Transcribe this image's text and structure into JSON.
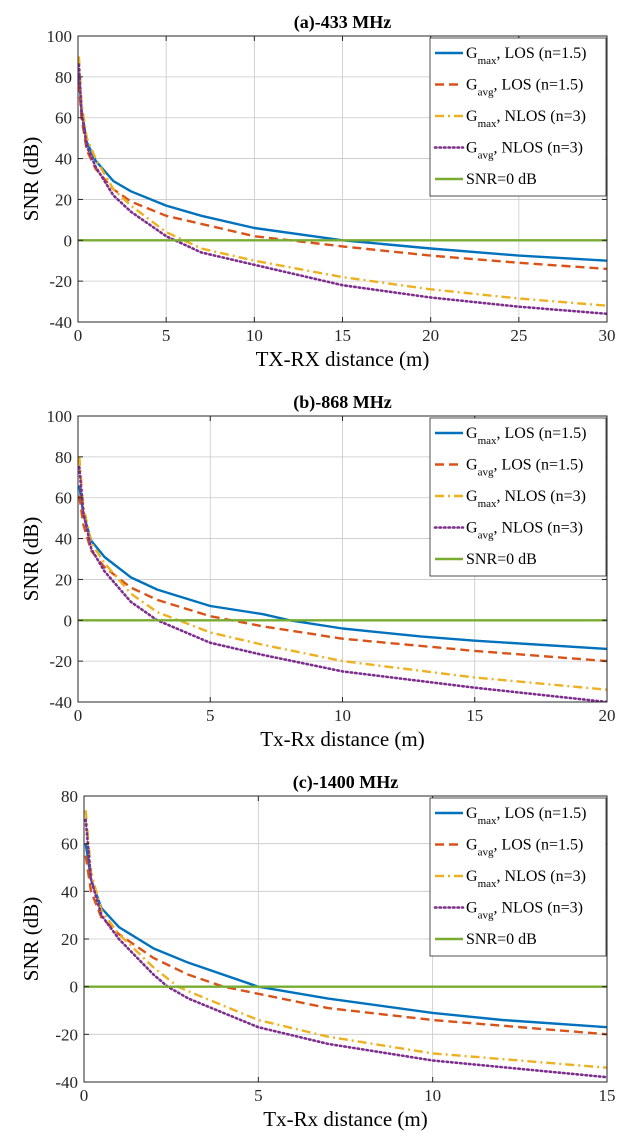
{
  "chart_data": [
    {
      "type": "line",
      "title": "(a)-433 MHz",
      "xlabel": "TX-RX distance (m)",
      "ylabel": "SNR (dB)",
      "xlim": [
        0,
        30
      ],
      "ylim": [
        -40,
        100
      ],
      "xticks": [
        "0",
        "5",
        "10",
        "15",
        "20",
        "25",
        "30"
      ],
      "yticks": [
        "100",
        "80",
        "60",
        "40",
        "20",
        "0",
        "-20",
        "-40"
      ],
      "grid": true,
      "legend_position": "top-right",
      "series": [
        {
          "label_main": "G",
          "label_sub": "max",
          "label_rest": ", LOS (n=1.5)",
          "color": "#0072BD",
          "dash": "solid",
          "x": [
            0.05,
            0.2,
            0.5,
            1,
            2,
            3,
            5,
            7,
            10,
            15,
            20,
            25,
            30
          ],
          "y": [
            82,
            64,
            48,
            39,
            29,
            24,
            17,
            12,
            6,
            0,
            -4,
            -7.5,
            -10
          ]
        },
        {
          "label_main": "G",
          "label_sub": "avg",
          "label_rest": ", LOS (n=1.5)",
          "color": "#D95319",
          "dash": "dashed",
          "x": [
            0.05,
            0.2,
            0.5,
            1,
            2,
            3,
            5,
            7,
            10,
            15,
            20,
            25,
            30
          ],
          "y": [
            77,
            60,
            44,
            35,
            25,
            19,
            12,
            8,
            2,
            -3,
            -7.5,
            -11,
            -14
          ]
        },
        {
          "label_main": "G",
          "label_sub": "max",
          "label_rest": ", NLOS (n=3)",
          "color": "#EDB120",
          "dash": "dashdot",
          "x": [
            0.05,
            0.2,
            0.5,
            1,
            2,
            3,
            5,
            7,
            10,
            15,
            20,
            25,
            30
          ],
          "y": [
            90,
            67,
            50,
            40,
            25,
            17,
            4,
            -4,
            -10,
            -18,
            -24,
            -28.5,
            -32
          ]
        },
        {
          "label_main": "G",
          "label_sub": "avg",
          "label_rest": ", NLOS (n=3)",
          "color": "#7E2F8E",
          "dash": "dotted",
          "x": [
            0.05,
            0.2,
            0.5,
            1,
            2,
            3,
            5,
            7,
            10,
            15,
            20,
            25,
            30
          ],
          "y": [
            86,
            63,
            46,
            36,
            22,
            14,
            2,
            -6,
            -12,
            -22,
            -28,
            -32.5,
            -36
          ]
        },
        {
          "label_main": "SNR=0 dB",
          "label_sub": "",
          "label_rest": "",
          "color": "#77AC30",
          "dash": "solid",
          "x": [
            0,
            30
          ],
          "y": [
            0,
            0
          ]
        }
      ]
    },
    {
      "type": "line",
      "title": "(b)-868 MHz",
      "xlabel": "Tx-Rx distance (m)",
      "ylabel": "SNR (dB)",
      "xlim": [
        0,
        20
      ],
      "ylim": [
        -40,
        100
      ],
      "xticks": [
        "0",
        "5",
        "10",
        "15",
        "20"
      ],
      "yticks": [
        "100",
        "80",
        "60",
        "40",
        "20",
        "0",
        "-20",
        "-40"
      ],
      "grid": true,
      "legend_position": "top-right",
      "series": [
        {
          "label_main": "G",
          "label_sub": "max",
          "label_rest": ", LOS (n=1.5)",
          "color": "#0072BD",
          "dash": "solid",
          "x": [
            0.05,
            0.2,
            0.5,
            1,
            2,
            3,
            5,
            7,
            8,
            10,
            13,
            15,
            20
          ],
          "y": [
            66,
            52,
            39,
            31,
            21,
            15,
            7,
            3,
            0,
            -4,
            -8,
            -10,
            -14
          ]
        },
        {
          "label_main": "G",
          "label_sub": "avg",
          "label_rest": ", LOS (n=1.5)",
          "color": "#D95319",
          "dash": "dashed",
          "x": [
            0.05,
            0.2,
            0.5,
            1,
            2,
            3,
            5,
            7,
            10,
            15,
            20
          ],
          "y": [
            61,
            47,
            34,
            26,
            16,
            10,
            2,
            -3,
            -9,
            -15,
            -20
          ]
        },
        {
          "label_main": "G",
          "label_sub": "max",
          "label_rest": ", NLOS (n=3)",
          "color": "#EDB120",
          "dash": "dashdot",
          "x": [
            0.05,
            0.2,
            0.5,
            1,
            2,
            3,
            5,
            7,
            10,
            15,
            20
          ],
          "y": [
            80,
            56,
            38,
            28,
            13,
            4,
            -6,
            -12,
            -20,
            -28,
            -34
          ]
        },
        {
          "label_main": "G",
          "label_sub": "avg",
          "label_rest": ", NLOS (n=3)",
          "color": "#7E2F8E",
          "dash": "dotted",
          "x": [
            0.05,
            0.2,
            0.5,
            1,
            2,
            3,
            5,
            7,
            10,
            15,
            20
          ],
          "y": [
            75,
            53,
            35,
            24,
            9,
            0,
            -11,
            -17,
            -25,
            -33,
            -40
          ]
        },
        {
          "label_main": "SNR=0 dB",
          "label_sub": "",
          "label_rest": "",
          "color": "#77AC30",
          "dash": "solid",
          "x": [
            0,
            20
          ],
          "y": [
            0,
            0
          ]
        }
      ]
    },
    {
      "type": "line",
      "title": "(c)-1400 MHz",
      "xlabel": "Tx-Rx distance (m)",
      "ylabel": "SNR (dB)",
      "xlim": [
        0,
        15
      ],
      "ylim": [
        -40,
        80
      ],
      "xticks": [
        "0",
        "5",
        "10",
        "15"
      ],
      "yticks": [
        "80",
        "60",
        "40",
        "20",
        "0",
        "-20",
        "-40"
      ],
      "grid": true,
      "legend_position": "top-right",
      "series": [
        {
          "label_main": "G",
          "label_sub": "max",
          "label_rest": ", LOS (n=1.5)",
          "color": "#0072BD",
          "dash": "solid",
          "x": [
            0.05,
            0.2,
            0.5,
            1,
            2,
            3,
            5,
            7,
            10,
            12,
            15
          ],
          "y": [
            60,
            45,
            33,
            25,
            16,
            10,
            0,
            -5,
            -11,
            -14,
            -17
          ]
        },
        {
          "label_main": "G",
          "label_sub": "avg",
          "label_rest": ", LOS (n=1.5)",
          "color": "#D95319",
          "dash": "dashed",
          "x": [
            0.05,
            0.2,
            0.5,
            1,
            2,
            3,
            4,
            5,
            7,
            10,
            15
          ],
          "y": [
            55,
            40,
            29,
            22,
            12,
            5,
            0,
            -3,
            -9,
            -14,
            -20
          ]
        },
        {
          "label_main": "G",
          "label_sub": "max",
          "label_rest": ", NLOS (n=3)",
          "color": "#EDB120",
          "dash": "dashdot",
          "x": [
            0.05,
            0.2,
            0.5,
            1,
            2,
            2.7,
            3,
            5,
            7,
            10,
            15
          ],
          "y": [
            74,
            48,
            32,
            22,
            8,
            0,
            -2,
            -14,
            -21,
            -28,
            -34
          ]
        },
        {
          "label_main": "G",
          "label_sub": "avg",
          "label_rest": ", NLOS (n=3)",
          "color": "#7E2F8E",
          "dash": "dotted",
          "x": [
            0.05,
            0.2,
            0.5,
            1,
            2,
            2.4,
            3,
            5,
            7,
            10,
            15
          ],
          "y": [
            70,
            45,
            30,
            20,
            5,
            0,
            -5,
            -17,
            -24,
            -31,
            -38
          ]
        },
        {
          "label_main": "SNR=0 dB",
          "label_sub": "",
          "label_rest": "",
          "color": "#77AC30",
          "dash": "solid",
          "x": [
            0,
            15
          ],
          "y": [
            0,
            0
          ]
        }
      ]
    }
  ]
}
